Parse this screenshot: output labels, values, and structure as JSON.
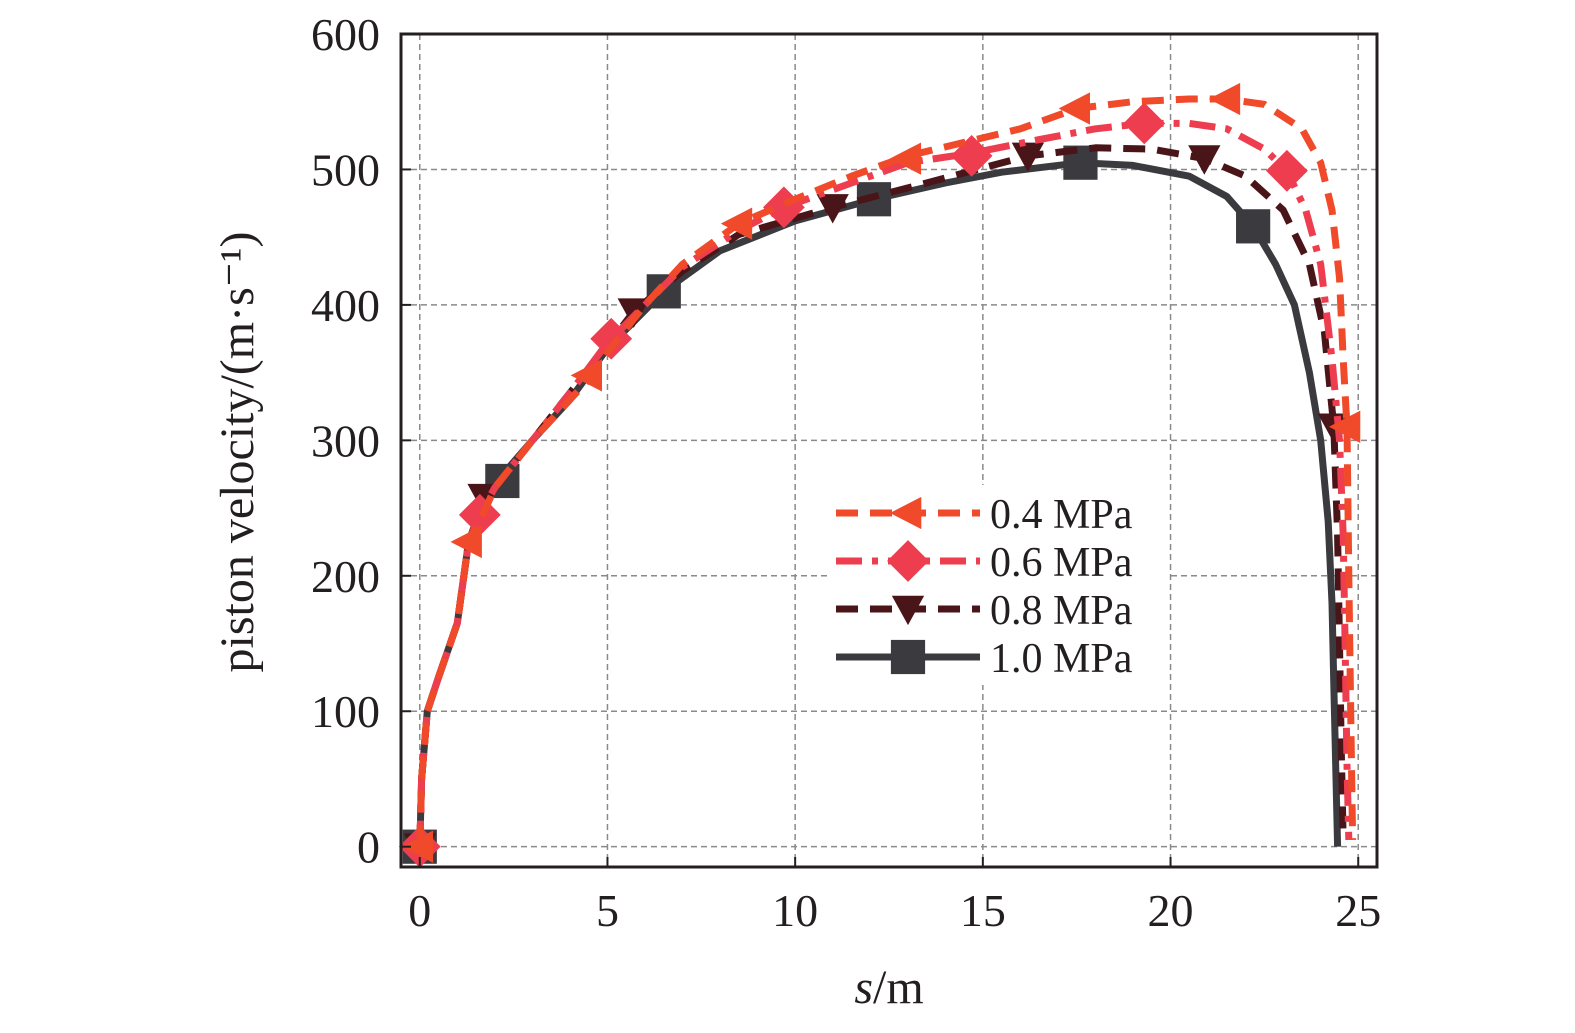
{
  "chart_data": {
    "type": "line",
    "xlabel": "s/m",
    "ylabel": "piston velocity/(m·s⁻¹)",
    "xlim": [
      -0.5,
      25.5
    ],
    "ylim": [
      -15,
      600
    ],
    "xticks": [
      0,
      5,
      10,
      15,
      20,
      25
    ],
    "yticks": [
      0,
      100,
      200,
      300,
      400,
      500,
      600
    ],
    "grid": true,
    "legend_position": "center-right",
    "series": [
      {
        "name": "0.4 MPa",
        "color": "#f04a2a",
        "dash": "dashed",
        "marker": "triangle-left",
        "x": [
          0,
          0.05,
          0.2,
          0.5,
          1.0,
          1.3,
          1.6,
          2.0,
          3.0,
          4.5,
          5.0,
          6.0,
          7.0,
          8.5,
          10.0,
          11.5,
          13.0,
          14.5,
          16.0,
          17.5,
          19.0,
          20.5,
          21.5,
          22.5,
          23.5,
          24.0,
          24.3,
          24.5,
          24.6,
          24.7,
          24.75,
          24.8,
          24.85
        ],
        "y": [
          0,
          50,
          100,
          125,
          165,
          225,
          240,
          265,
          300,
          345,
          365,
          400,
          430,
          460,
          478,
          495,
          510,
          520,
          530,
          545,
          550,
          552,
          552,
          548,
          530,
          505,
          470,
          420,
          360,
          310,
          200,
          100,
          5
        ],
        "marker_x": [
          0,
          1.3,
          4.5,
          8.5,
          13.0,
          17.5,
          21.5,
          24.7
        ],
        "marker_y": [
          0,
          225,
          348,
          460,
          508,
          545,
          552,
          310
        ]
      },
      {
        "name": "0.6 MPa",
        "color": "#ed3d4e",
        "dash": "dashdot",
        "marker": "diamond",
        "x": [
          0,
          0.05,
          0.2,
          0.5,
          1.0,
          1.3,
          1.6,
          2.0,
          3.0,
          4.0,
          5.0,
          6.0,
          7.0,
          8.5,
          9.7,
          11.5,
          13.0,
          14.7,
          16.5,
          18.0,
          19.3,
          20.5,
          21.5,
          22.5,
          23.1,
          23.6,
          24.0,
          24.3,
          24.5,
          24.6,
          24.65,
          24.7,
          24.75
        ],
        "y": [
          0,
          50,
          100,
          125,
          165,
          225,
          245,
          265,
          300,
          335,
          372,
          400,
          428,
          455,
          472,
          490,
          505,
          512,
          522,
          530,
          534,
          534,
          530,
          515,
          499,
          470,
          430,
          360,
          300,
          230,
          150,
          60,
          5
        ],
        "marker_x": [
          0,
          1.6,
          5.1,
          9.7,
          14.7,
          19.3,
          23.1
        ],
        "marker_y": [
          0,
          245,
          375,
          472,
          510,
          534,
          499
        ]
      },
      {
        "name": "0.8 MPa",
        "color": "#4a1518",
        "dash": "dashed",
        "marker": "triangle-down",
        "x": [
          0,
          0.05,
          0.2,
          0.5,
          1.0,
          1.3,
          1.7,
          2.0,
          3.0,
          4.0,
          5.0,
          5.7,
          7.0,
          8.5,
          11.0,
          13.5,
          16.2,
          18.0,
          19.5,
          20.9,
          22.0,
          23.0,
          23.7,
          24.1,
          24.35,
          24.45,
          24.5,
          24.55,
          24.6
        ],
        "y": [
          0,
          50,
          100,
          125,
          165,
          225,
          255,
          265,
          300,
          335,
          370,
          395,
          425,
          452,
          472,
          490,
          510,
          516,
          515,
          508,
          495,
          470,
          430,
          380,
          310,
          230,
          150,
          70,
          5
        ],
        "marker_x": [
          0,
          1.7,
          5.7,
          11.0,
          16.2,
          20.9,
          24.35
        ],
        "marker_y": [
          0,
          258,
          395,
          472,
          510,
          508,
          310
        ]
      },
      {
        "name": "1.0 MPa",
        "color": "#3b3b3f",
        "dash": "solid",
        "marker": "square",
        "x": [
          0,
          0.05,
          0.2,
          0.5,
          1.0,
          1.3,
          2.0,
          3.0,
          4.0,
          5.0,
          6.5,
          8.0,
          10.0,
          12.1,
          14.0,
          15.5,
          17.6,
          19.0,
          20.5,
          21.5,
          22.2,
          22.8,
          23.3,
          23.7,
          24.0,
          24.2,
          24.3,
          24.35,
          24.4,
          24.45
        ],
        "y": [
          0,
          50,
          100,
          125,
          165,
          225,
          268,
          300,
          330,
          368,
          410,
          440,
          462,
          478,
          490,
          498,
          505,
          503,
          495,
          480,
          458,
          430,
          400,
          350,
          300,
          240,
          180,
          120,
          60,
          0
        ],
        "marker_x": [
          0,
          2.2,
          6.5,
          12.1,
          17.6,
          22.2
        ],
        "marker_y": [
          0,
          270,
          410,
          478,
          505,
          458
        ]
      }
    ]
  }
}
